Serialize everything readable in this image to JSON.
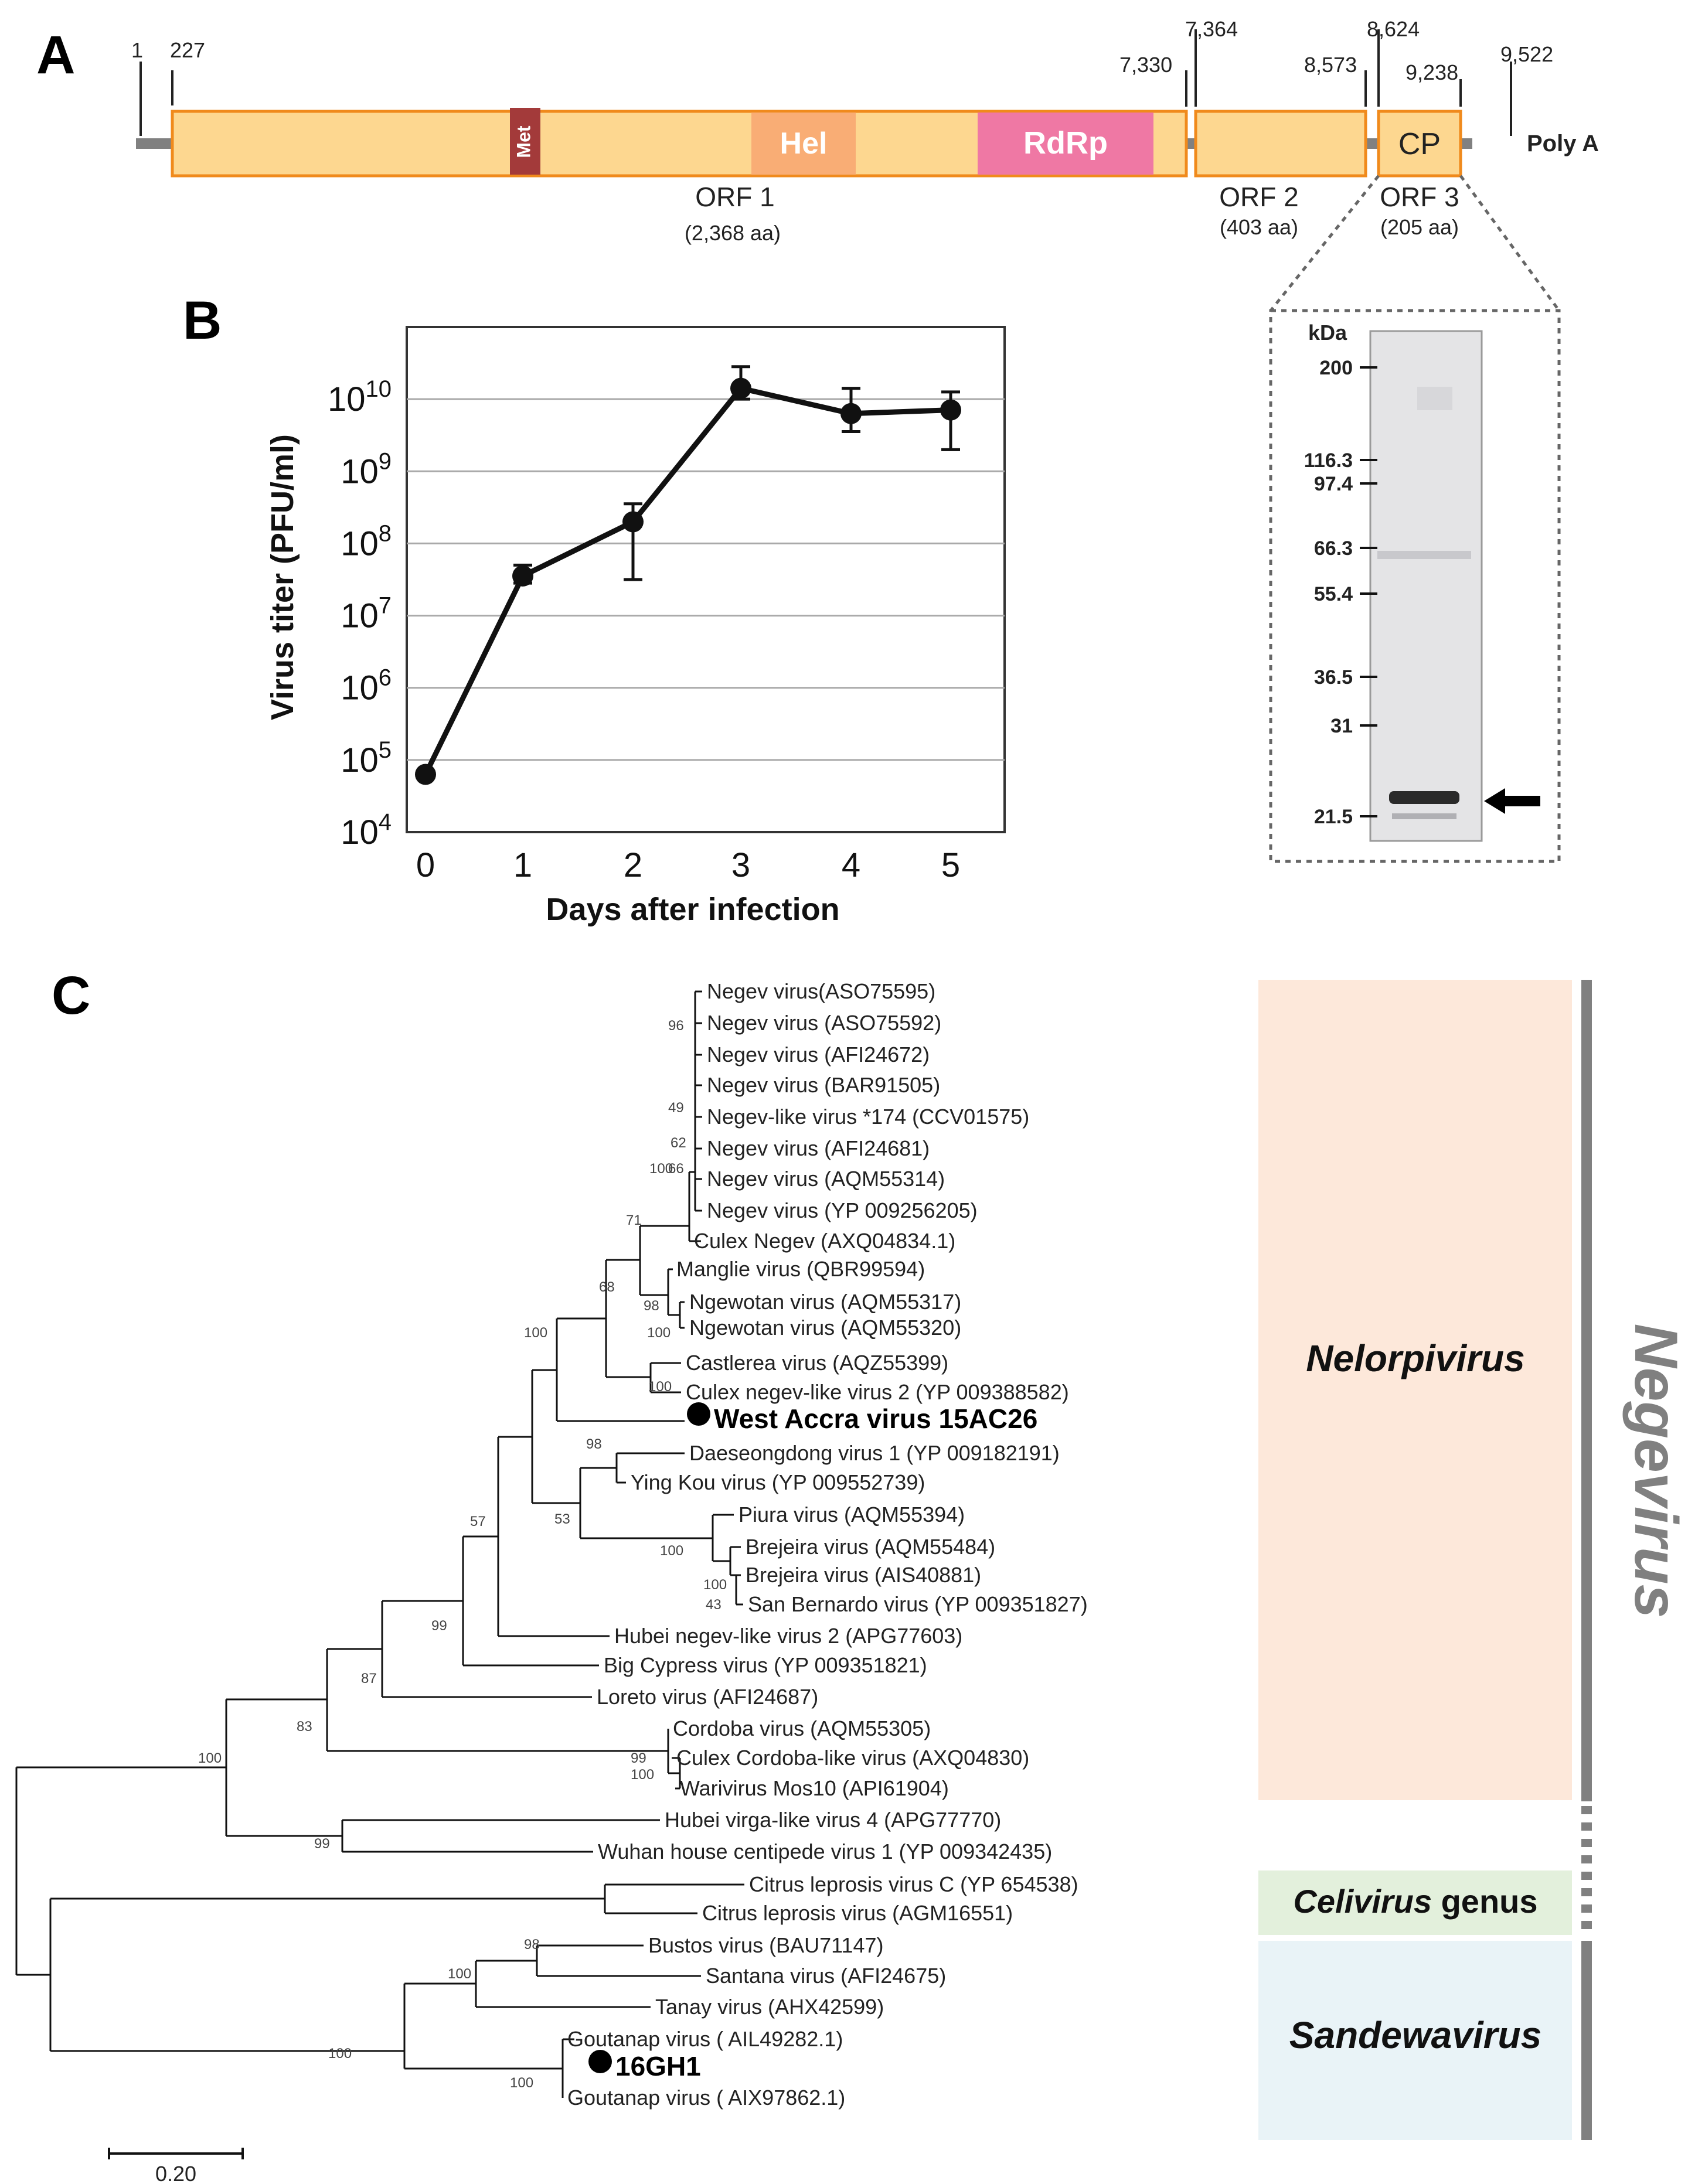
{
  "panels": {
    "A": "A",
    "B": "B",
    "C": "C"
  },
  "genome": {
    "positions": [
      "1",
      "227",
      "7,330",
      "7,364",
      "8,573",
      "8,624",
      "9,238",
      "9,522"
    ],
    "domains": {
      "met": "Met",
      "hel": "Hel",
      "rdrp": "RdRp",
      "cp": "CP"
    },
    "poly_a": "Poly A",
    "orfs": [
      {
        "name": "ORF 1",
        "size": "(2,368 aa)"
      },
      {
        "name": "ORF 2",
        "size": "(403 aa)"
      },
      {
        "name": "ORF 3",
        "size": "(205 aa)"
      }
    ]
  },
  "colors": {
    "orf": "#fdd790",
    "orf_border": "#f08a1c",
    "met": "#a33a3a",
    "hel": "#f9ad75",
    "rdrp": "#ef78a4",
    "line": "#808080"
  },
  "gel": {
    "unit": "kDa",
    "markers": [
      "200",
      "116.3",
      "97.4",
      "66.3",
      "55.4",
      "36.5",
      "31",
      "21.5"
    ]
  },
  "chart_data": {
    "type": "line",
    "x": [
      0,
      1,
      2,
      3,
      4,
      5
    ],
    "y_log10": [
      4.8,
      7.55,
      8.3,
      10.15,
      9.8,
      9.85
    ],
    "error_log10": [
      [
        4.8,
        4.8
      ],
      [
        7.45,
        7.7
      ],
      [
        7.5,
        8.55
      ],
      [
        10.0,
        10.45
      ],
      [
        9.55,
        10.15
      ],
      [
        9.3,
        10.1
      ]
    ],
    "title": "",
    "xlabel": "Days after infection",
    "ylabel": "Virus titer (PFU/ml)",
    "ylim_log10": [
      4,
      11
    ],
    "x_ticks": [
      "0",
      "1",
      "2",
      "3",
      "4",
      "5"
    ],
    "y_ticks": [
      {
        "base": "10",
        "exp": "4"
      },
      {
        "base": "10",
        "exp": "5"
      },
      {
        "base": "10",
        "exp": "6"
      },
      {
        "base": "10",
        "exp": "7"
      },
      {
        "base": "10",
        "exp": "8"
      },
      {
        "base": "10",
        "exp": "9"
      },
      {
        "base": "10",
        "exp": "10"
      }
    ],
    "grid": true
  },
  "tree": {
    "taxa": [
      "Negev virus(ASO75595)",
      "Negev virus (ASO75592)",
      "Negev virus (AFI24672)",
      "Negev virus (BAR91505)",
      "Negev-like virus *174 (CCV01575)",
      "Negev virus (AFI24681)",
      "Negev virus (AQM55314)",
      "Negev virus (YP 009256205)",
      "Culex Negev (AXQ04834.1)",
      "Manglie virus (QBR99594)",
      "Ngewotan virus (AQM55317)",
      "Ngewotan virus (AQM55320)",
      "Castlerea virus (AQZ55399)",
      "Culex negev-like virus 2 (YP 009388582)",
      "West Accra virus 15AC26",
      "Daeseongdong virus 1 (YP 009182191)",
      "Ying Kou virus (YP 009552739)",
      "Piura virus (AQM55394)",
      "Brejeira virus (AQM55484)",
      "Brejeira virus (AIS40881)",
      "San Bernardo virus (YP 009351827)",
      "Hubei negev-like virus 2 (APG77603)",
      "Big Cypress virus (YP 009351821)",
      "Loreto virus (AFI24687)",
      "Cordoba virus (AQM55305)",
      "Culex Cordoba-like virus (AXQ04830)",
      "Warivirus Mos10 (API61904)",
      "Hubei virga-like virus 4 (APG77770)",
      "Wuhan house centipede virus 1 (YP 009342435)",
      "Citrus leprosis virus C (YP 654538)",
      "Citrus leprosis virus  (AGM16551)",
      "Bustos virus (BAU71147)",
      "Santana virus (AFI24675)",
      "Tanay virus (AHX42599)",
      "Goutanap virus ( AIL49282.1)",
      "16GH1",
      "Goutanap virus ( AIX97862.1)"
    ],
    "bootstrap": [
      "96",
      "49",
      "62",
      "100",
      "66",
      "71",
      "68",
      "98",
      "100",
      "100",
      "100",
      "98",
      "53",
      "100",
      "100",
      "43",
      "57",
      "99",
      "87",
      "83",
      "100",
      "99",
      "100",
      "99",
      "98",
      "100",
      "100",
      "100"
    ],
    "scale": "0.20"
  },
  "groups": {
    "nelorpivirus": "Nelorpivirus",
    "celivirus_italic": "Celivirus",
    "celivirus_plain": "genus",
    "sandewavirus": "Sandewavirus",
    "negevirus": "Negevirus"
  }
}
